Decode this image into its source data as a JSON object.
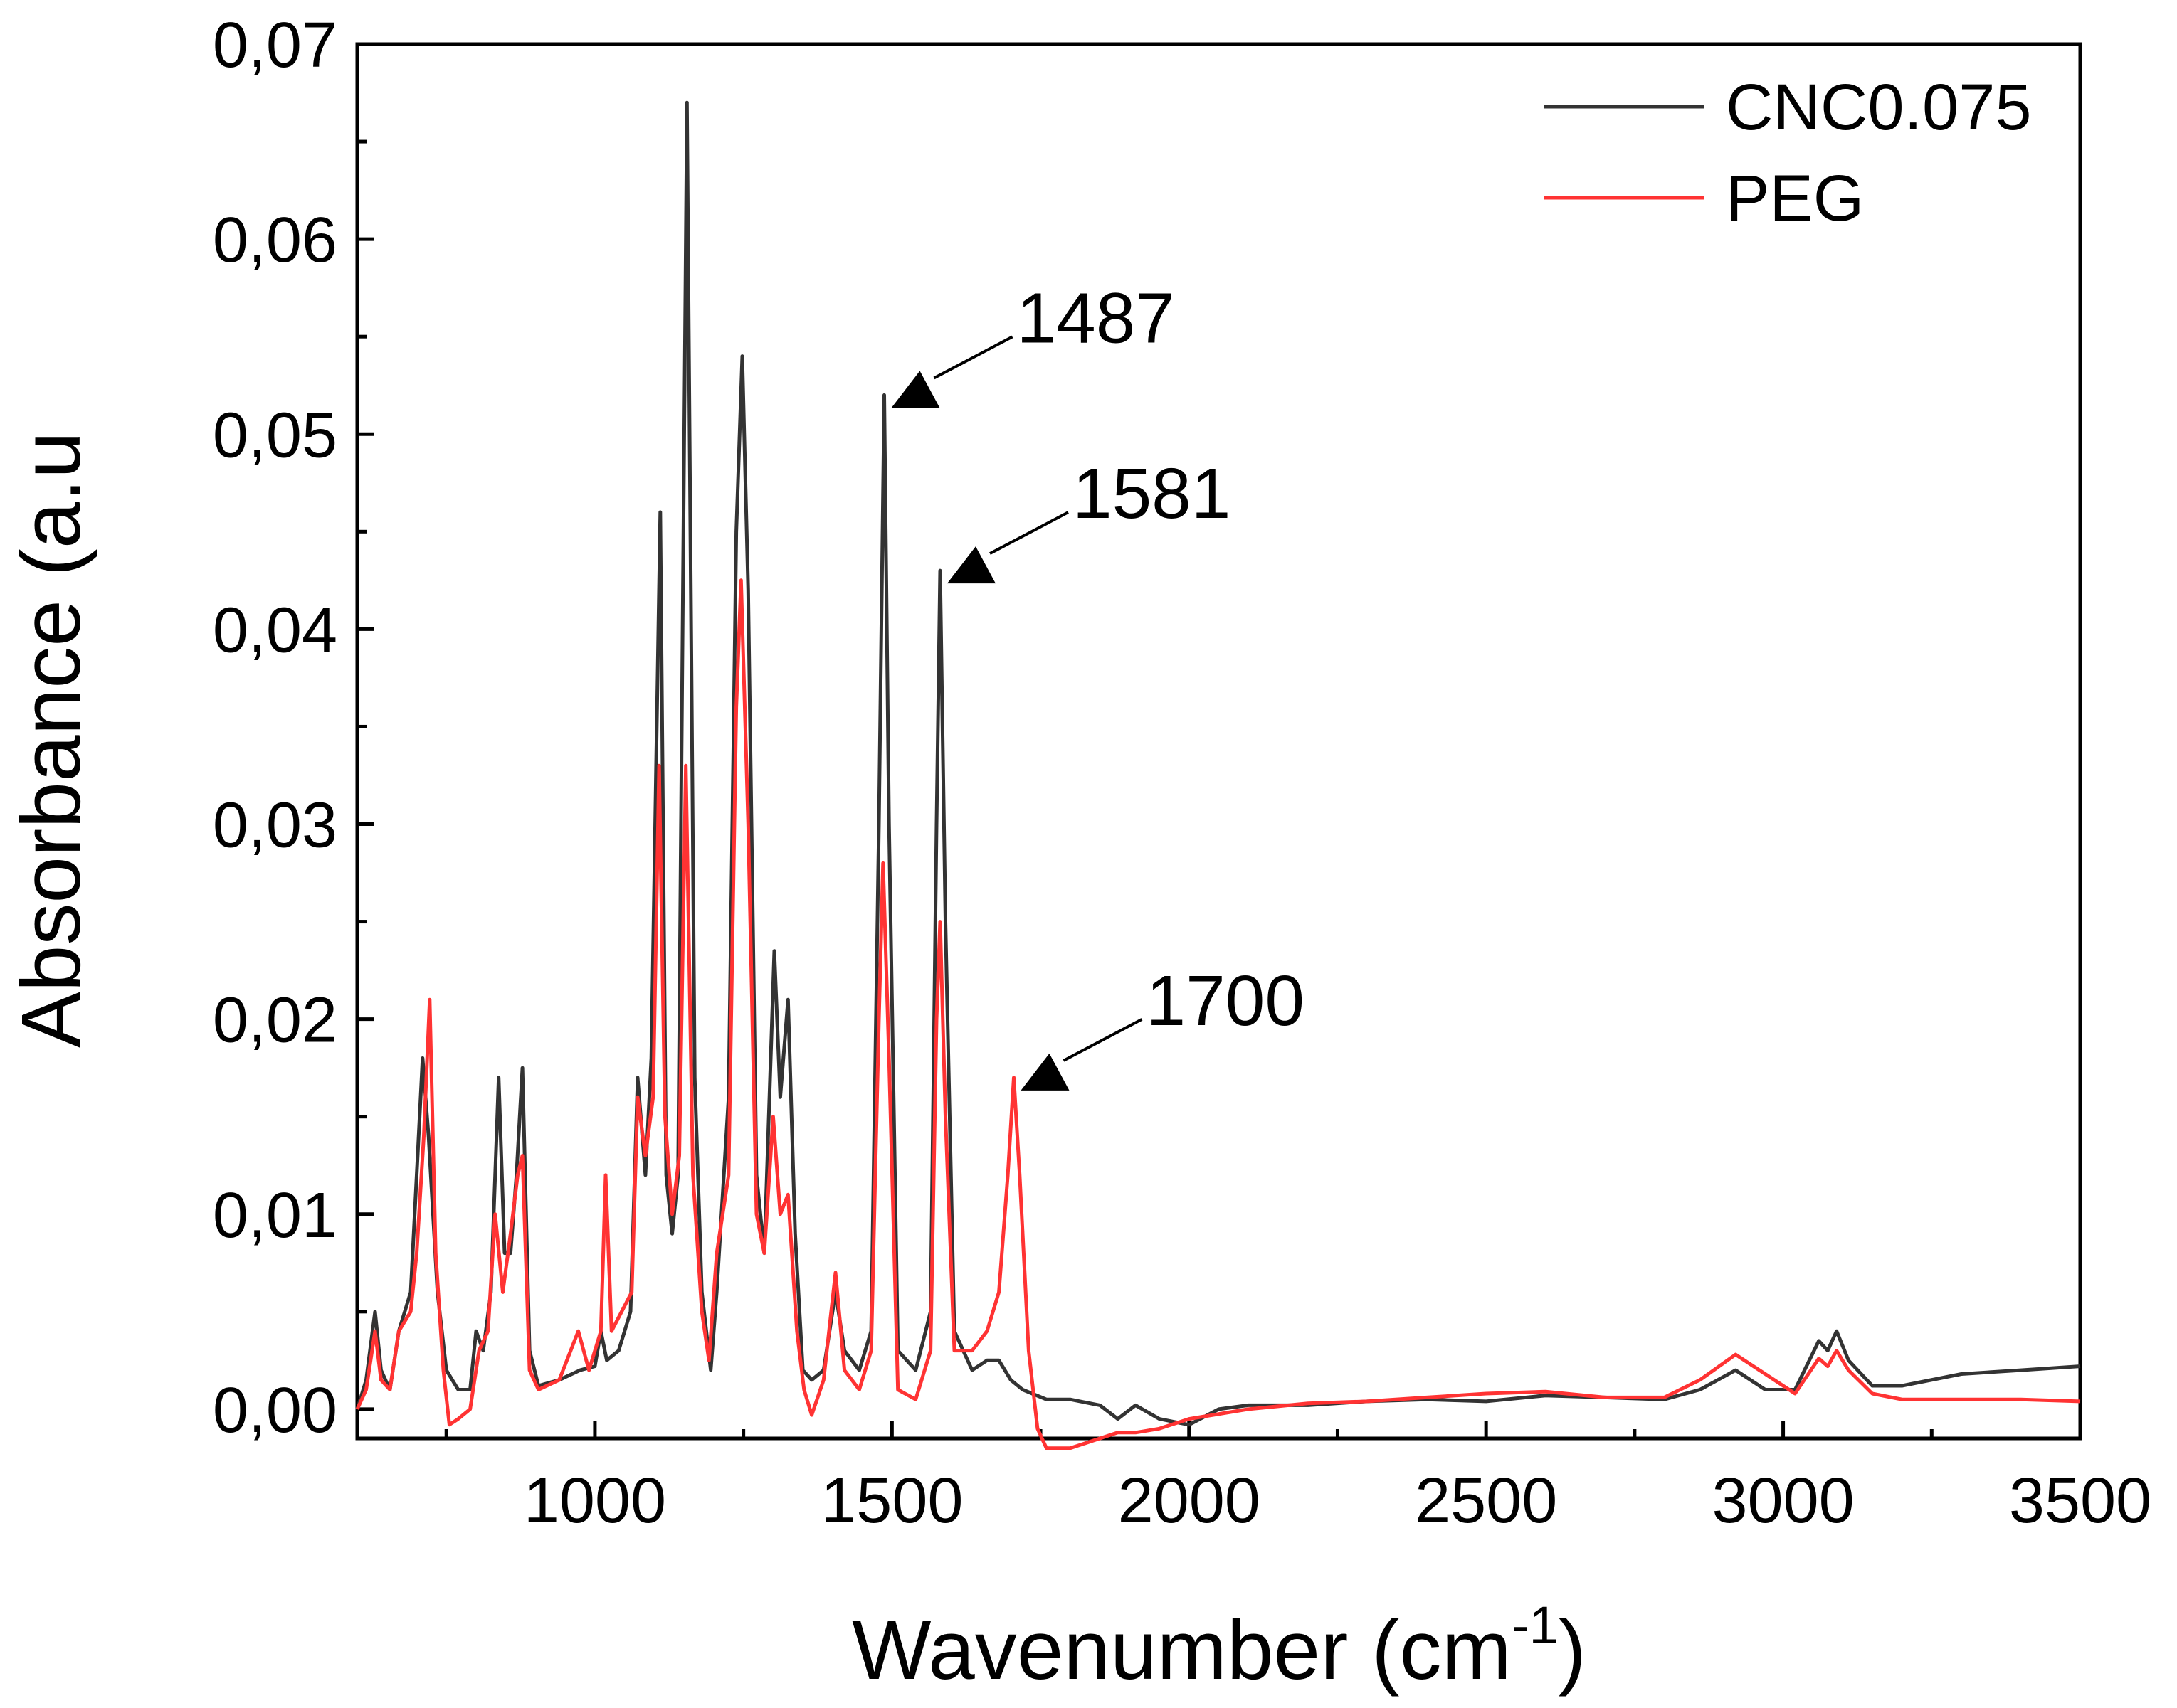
{
  "chart_data": {
    "type": "line",
    "xlabel": "Wavenumber (cm",
    "xlabel_sup": "-1",
    "xlabel_close": ")",
    "ylabel": "Absorbance (a.u",
    "xlim": [
      600,
      3500
    ],
    "ylim": [
      -0.0015,
      0.07
    ],
    "xticks": [
      1000,
      1500,
      2000,
      2500,
      3000,
      3500
    ],
    "xtick_labels": [
      "1000",
      "1500",
      "2000",
      "2500",
      "3000",
      "3500"
    ],
    "yticks": [
      0,
      0.01,
      0.02,
      0.03,
      0.04,
      0.05,
      0.06,
      0.07
    ],
    "ytick_labels": [
      "0,00",
      "0,01",
      "0,02",
      "0,03",
      "0,04",
      "0,05",
      "0,06",
      "0,07"
    ],
    "grid": false,
    "legend_position": "top-right",
    "series": [
      {
        "name": "CNC0.075",
        "color": "#333333",
        "points": [
          [
            600,
            0.0
          ],
          [
            615,
            0.0015
          ],
          [
            630,
            0.005
          ],
          [
            640,
            0.002
          ],
          [
            655,
            0.001
          ],
          [
            670,
            0.004
          ],
          [
            690,
            0.006
          ],
          [
            700,
            0.012
          ],
          [
            710,
            0.018
          ],
          [
            720,
            0.014
          ],
          [
            735,
            0.006
          ],
          [
            750,
            0.002
          ],
          [
            770,
            0.001
          ],
          [
            790,
            0.001
          ],
          [
            800,
            0.004
          ],
          [
            812,
            0.003
          ],
          [
            825,
            0.006
          ],
          [
            838,
            0.017
          ],
          [
            848,
            0.008
          ],
          [
            858,
            0.008
          ],
          [
            868,
            0.012
          ],
          [
            878,
            0.0175
          ],
          [
            890,
            0.003
          ],
          [
            905,
            0.0012
          ],
          [
            940,
            0.0015
          ],
          [
            975,
            0.002
          ],
          [
            1000,
            0.0022
          ],
          [
            1010,
            0.004
          ],
          [
            1020,
            0.0025
          ],
          [
            1040,
            0.003
          ],
          [
            1060,
            0.005
          ],
          [
            1072,
            0.017
          ],
          [
            1085,
            0.012
          ],
          [
            1095,
            0.018
          ],
          [
            1110,
            0.046
          ],
          [
            1120,
            0.012
          ],
          [
            1130,
            0.009
          ],
          [
            1140,
            0.012
          ],
          [
            1155,
            0.067
          ],
          [
            1168,
            0.017
          ],
          [
            1180,
            0.006
          ],
          [
            1195,
            0.002
          ],
          [
            1205,
            0.006
          ],
          [
            1225,
            0.016
          ],
          [
            1238,
            0.045
          ],
          [
            1248,
            0.054
          ],
          [
            1258,
            0.042
          ],
          [
            1272,
            0.012
          ],
          [
            1285,
            0.008
          ],
          [
            1302,
            0.0235
          ],
          [
            1312,
            0.016
          ],
          [
            1325,
            0.021
          ],
          [
            1337,
            0.009
          ],
          [
            1350,
            0.002
          ],
          [
            1365,
            0.0015
          ],
          [
            1385,
            0.002
          ],
          [
            1405,
            0.006
          ],
          [
            1420,
            0.003
          ],
          [
            1445,
            0.002
          ],
          [
            1465,
            0.004
          ],
          [
            1478,
            0.03
          ],
          [
            1487,
            0.052
          ],
          [
            1495,
            0.03
          ],
          [
            1510,
            0.003
          ],
          [
            1540,
            0.002
          ],
          [
            1565,
            0.005
          ],
          [
            1575,
            0.03
          ],
          [
            1581,
            0.043
          ],
          [
            1590,
            0.025
          ],
          [
            1605,
            0.004
          ],
          [
            1635,
            0.002
          ],
          [
            1660,
            0.0025
          ],
          [
            1680,
            0.0025
          ],
          [
            1700,
            0.0015
          ],
          [
            1720,
            0.001
          ],
          [
            1760,
            0.0005
          ],
          [
            1800,
            0.0005
          ],
          [
            1850,
            0.0002
          ],
          [
            1880,
            -0.0005
          ],
          [
            1910,
            0.0002
          ],
          [
            1950,
            -0.0005
          ],
          [
            2000,
            -0.0008
          ],
          [
            2050,
            0.0
          ],
          [
            2100,
            0.0002
          ],
          [
            2200,
            0.0002
          ],
          [
            2300,
            0.0004
          ],
          [
            2400,
            0.0005
          ],
          [
            2500,
            0.0004
          ],
          [
            2600,
            0.0007
          ],
          [
            2700,
            0.0006
          ],
          [
            2800,
            0.0005
          ],
          [
            2860,
            0.001
          ],
          [
            2920,
            0.002
          ],
          [
            2970,
            0.001
          ],
          [
            3020,
            0.001
          ],
          [
            3060,
            0.0035
          ],
          [
            3075,
            0.003
          ],
          [
            3090,
            0.004
          ],
          [
            3110,
            0.0025
          ],
          [
            3150,
            0.0012
          ],
          [
            3200,
            0.0012
          ],
          [
            3300,
            0.0018
          ],
          [
            3400,
            0.002
          ],
          [
            3500,
            0.0022
          ]
        ]
      },
      {
        "name": "PEG",
        "color": "#ff3333",
        "points": [
          [
            600,
            0.0
          ],
          [
            615,
            0.001
          ],
          [
            630,
            0.004
          ],
          [
            640,
            0.0015
          ],
          [
            655,
            0.001
          ],
          [
            670,
            0.004
          ],
          [
            690,
            0.005
          ],
          [
            700,
            0.008
          ],
          [
            712,
            0.014
          ],
          [
            722,
            0.021
          ],
          [
            732,
            0.008
          ],
          [
            745,
            0.002
          ],
          [
            755,
            -0.0008
          ],
          [
            770,
            -0.0005
          ],
          [
            790,
            0.0
          ],
          [
            805,
            0.003
          ],
          [
            820,
            0.004
          ],
          [
            832,
            0.01
          ],
          [
            845,
            0.006
          ],
          [
            858,
            0.009
          ],
          [
            870,
            0.012
          ],
          [
            878,
            0.013
          ],
          [
            890,
            0.002
          ],
          [
            905,
            0.001
          ],
          [
            940,
            0.0015
          ],
          [
            972,
            0.004
          ],
          [
            990,
            0.002
          ],
          [
            1010,
            0.004
          ],
          [
            1018,
            0.012
          ],
          [
            1028,
            0.004
          ],
          [
            1045,
            0.005
          ],
          [
            1062,
            0.006
          ],
          [
            1072,
            0.016
          ],
          [
            1085,
            0.013
          ],
          [
            1098,
            0.016
          ],
          [
            1108,
            0.033
          ],
          [
            1118,
            0.015
          ],
          [
            1130,
            0.01
          ],
          [
            1142,
            0.013
          ],
          [
            1153,
            0.033
          ],
          [
            1165,
            0.012
          ],
          [
            1180,
            0.005
          ],
          [
            1192,
            0.0025
          ],
          [
            1205,
            0.008
          ],
          [
            1225,
            0.012
          ],
          [
            1238,
            0.036
          ],
          [
            1246,
            0.0425
          ],
          [
            1258,
            0.03
          ],
          [
            1272,
            0.01
          ],
          [
            1285,
            0.008
          ],
          [
            1300,
            0.015
          ],
          [
            1312,
            0.01
          ],
          [
            1325,
            0.011
          ],
          [
            1340,
            0.004
          ],
          [
            1352,
            0.001
          ],
          [
            1365,
            -0.0003
          ],
          [
            1385,
            0.0015
          ],
          [
            1405,
            0.007
          ],
          [
            1420,
            0.002
          ],
          [
            1445,
            0.001
          ],
          [
            1465,
            0.003
          ],
          [
            1478,
            0.02
          ],
          [
            1485,
            0.028
          ],
          [
            1495,
            0.018
          ],
          [
            1510,
            0.001
          ],
          [
            1540,
            0.0005
          ],
          [
            1565,
            0.003
          ],
          [
            1575,
            0.02
          ],
          [
            1581,
            0.025
          ],
          [
            1590,
            0.015
          ],
          [
            1605,
            0.003
          ],
          [
            1635,
            0.003
          ],
          [
            1660,
            0.004
          ],
          [
            1680,
            0.006
          ],
          [
            1695,
            0.012
          ],
          [
            1705,
            0.017
          ],
          [
            1715,
            0.012
          ],
          [
            1730,
            0.003
          ],
          [
            1745,
            -0.001
          ],
          [
            1760,
            -0.002
          ],
          [
            1800,
            -0.002
          ],
          [
            1850,
            -0.0015
          ],
          [
            1880,
            -0.0012
          ],
          [
            1910,
            -0.0012
          ],
          [
            1950,
            -0.001
          ],
          [
            2000,
            -0.0005
          ],
          [
            2100,
            0.0
          ],
          [
            2200,
            0.0003
          ],
          [
            2300,
            0.0004
          ],
          [
            2400,
            0.0006
          ],
          [
            2500,
            0.0008
          ],
          [
            2600,
            0.0009
          ],
          [
            2700,
            0.0006
          ],
          [
            2800,
            0.0006
          ],
          [
            2860,
            0.0015
          ],
          [
            2920,
            0.0028
          ],
          [
            2970,
            0.0018
          ],
          [
            3020,
            0.0008
          ],
          [
            3060,
            0.0026
          ],
          [
            3075,
            0.0022
          ],
          [
            3090,
            0.003
          ],
          [
            3110,
            0.002
          ],
          [
            3150,
            0.0008
          ],
          [
            3200,
            0.0005
          ],
          [
            3300,
            0.0005
          ],
          [
            3400,
            0.0005
          ],
          [
            3500,
            0.0004
          ]
        ]
      }
    ],
    "annotations": [
      {
        "text": "1487",
        "x": 1487,
        "y": 0.052
      },
      {
        "text": "1581",
        "x": 1581,
        "y": 0.043
      },
      {
        "text": "1700",
        "x": 1705,
        "y": 0.017
      }
    ]
  }
}
